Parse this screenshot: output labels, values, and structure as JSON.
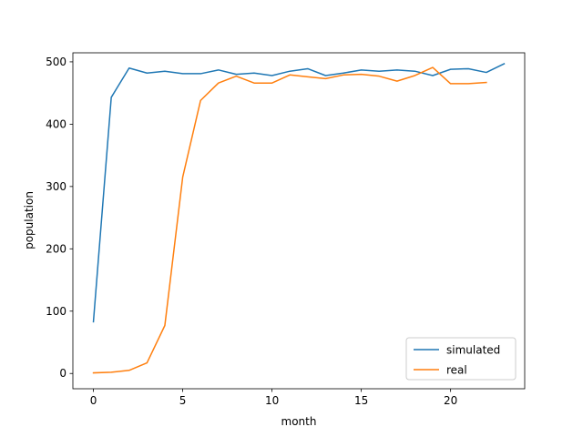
{
  "chart_data": {
    "type": "line",
    "xlabel": "month",
    "ylabel": "population",
    "xlim": [
      -1.15,
      24.15
    ],
    "ylim": [
      -24.5,
      514.5
    ],
    "xticks": [
      0,
      5,
      10,
      15,
      20
    ],
    "yticks": [
      0,
      100,
      200,
      300,
      400,
      500
    ],
    "grid": false,
    "legend_position": "lower-right",
    "series": [
      {
        "name": "simulated",
        "color": "#1f77b4",
        "x": [
          0,
          1,
          2,
          3,
          4,
          5,
          6,
          7,
          8,
          9,
          10,
          11,
          12,
          13,
          14,
          15,
          16,
          17,
          18,
          19,
          20,
          21,
          22,
          23
        ],
        "values": [
          83,
          443,
          490,
          482,
          485,
          481,
          481,
          487,
          480,
          482,
          478,
          485,
          489,
          478,
          482,
          487,
          485,
          487,
          485,
          478,
          488,
          489,
          483,
          497
        ]
      },
      {
        "name": "real",
        "color": "#ff7f0e",
        "x": [
          0,
          1,
          2,
          3,
          4,
          5,
          6,
          7,
          8,
          9,
          10,
          11,
          12,
          13,
          14,
          15,
          16,
          17,
          18,
          19,
          20,
          21,
          22
        ],
        "values": [
          1,
          2,
          5,
          17,
          77,
          315,
          438,
          466,
          477,
          466,
          466,
          479,
          476,
          473,
          479,
          480,
          477,
          469,
          478,
          491,
          465,
          465,
          467
        ]
      }
    ]
  }
}
